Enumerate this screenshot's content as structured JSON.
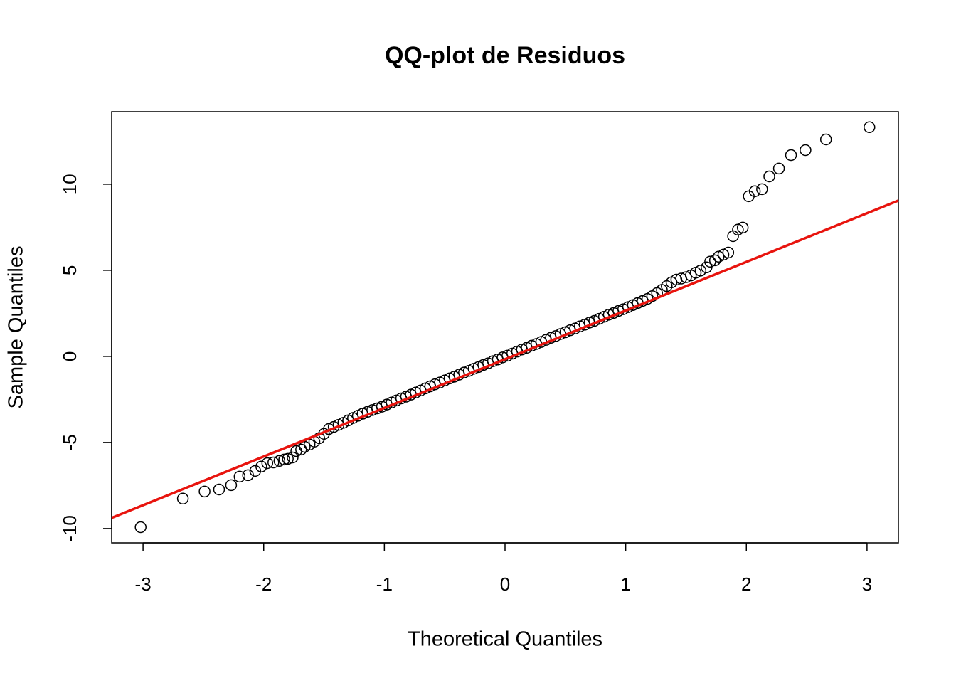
{
  "chart_data": {
    "type": "scatter",
    "title": "QQ-plot de Residuos",
    "x_label": "Theoretical Quantiles",
    "y_label": "Sample Quantiles",
    "x": [
      -3.02,
      -2.67,
      -2.49,
      -2.37,
      -2.27,
      -2.2,
      -2.13,
      -2.07,
      -2.02,
      -1.97,
      -1.92,
      -1.87,
      -1.83,
      -1.8,
      -1.76,
      -1.73,
      -1.69,
      -1.66,
      -1.62,
      -1.58,
      -1.54,
      -1.5,
      -1.46,
      -1.42,
      -1.38,
      -1.34,
      -1.3,
      -1.26,
      -1.22,
      -1.18,
      -1.14,
      -1.1,
      -1.06,
      -1.02,
      -0.98,
      -0.94,
      -0.9,
      -0.86,
      -0.82,
      -0.78,
      -0.74,
      -0.7,
      -0.66,
      -0.62,
      -0.58,
      -0.54,
      -0.5,
      -0.46,
      -0.42,
      -0.38,
      -0.34,
      -0.3,
      -0.26,
      -0.22,
      -0.18,
      -0.14,
      -0.1,
      -0.06,
      -0.02,
      0.02,
      0.06,
      0.1,
      0.14,
      0.18,
      0.22,
      0.26,
      0.3,
      0.34,
      0.38,
      0.42,
      0.46,
      0.5,
      0.54,
      0.58,
      0.62,
      0.66,
      0.7,
      0.74,
      0.78,
      0.82,
      0.86,
      0.9,
      0.94,
      0.98,
      1.02,
      1.06,
      1.1,
      1.14,
      1.18,
      1.22,
      1.26,
      1.3,
      1.34,
      1.38,
      1.42,
      1.46,
      1.5,
      1.54,
      1.58,
      1.62,
      1.67,
      1.7,
      1.74,
      1.77,
      1.81,
      1.85,
      1.89,
      1.93,
      1.97,
      2.02,
      2.07,
      2.13,
      2.19,
      2.27,
      2.37,
      2.49,
      2.66,
      3.02
    ],
    "values": [
      -9.92,
      -8.26,
      -7.85,
      -7.73,
      -7.48,
      -6.98,
      -6.9,
      -6.65,
      -6.4,
      -6.2,
      -6.16,
      -6.07,
      -5.99,
      -5.95,
      -5.87,
      -5.5,
      -5.41,
      -5.25,
      -5.12,
      -4.95,
      -4.75,
      -4.5,
      -4.22,
      -4.1,
      -3.98,
      -3.86,
      -3.72,
      -3.58,
      -3.45,
      -3.33,
      -3.22,
      -3.12,
      -3.02,
      -2.92,
      -2.8,
      -2.68,
      -2.56,
      -2.44,
      -2.34,
      -2.22,
      -2.1,
      -1.98,
      -1.86,
      -1.74,
      -1.62,
      -1.52,
      -1.4,
      -1.28,
      -1.18,
      -1.06,
      -0.94,
      -0.84,
      -0.72,
      -0.62,
      -0.5,
      -0.4,
      -0.28,
      -0.18,
      -0.06,
      0.04,
      0.16,
      0.28,
      0.4,
      0.5,
      0.62,
      0.72,
      0.84,
      0.96,
      1.08,
      1.18,
      1.3,
      1.4,
      1.52,
      1.62,
      1.74,
      1.84,
      1.96,
      2.06,
      2.18,
      2.3,
      2.42,
      2.52,
      2.64,
      2.74,
      2.86,
      2.98,
      3.1,
      3.22,
      3.34,
      3.5,
      3.68,
      3.86,
      4.08,
      4.3,
      4.46,
      4.52,
      4.6,
      4.7,
      4.86,
      4.98,
      5.17,
      5.5,
      5.58,
      5.79,
      5.91,
      6.03,
      6.98,
      7.36,
      7.48,
      9.3,
      9.59,
      9.71,
      10.45,
      10.91,
      11.69,
      11.98,
      12.6,
      13.31
    ],
    "color": "#000000",
    "reference_line": {
      "x": [
        -3.26,
        3.26
      ],
      "y": [
        -9.38,
        9.05
      ],
      "color": "#e8140e"
    },
    "xlim": [
      -3.26,
      3.26
    ],
    "ylim": [
      -10.83,
      14.21
    ],
    "xticks": [
      -3,
      -2,
      -1,
      0,
      1,
      2,
      3
    ],
    "yticks": [
      -10,
      -5,
      0,
      5,
      10
    ]
  }
}
